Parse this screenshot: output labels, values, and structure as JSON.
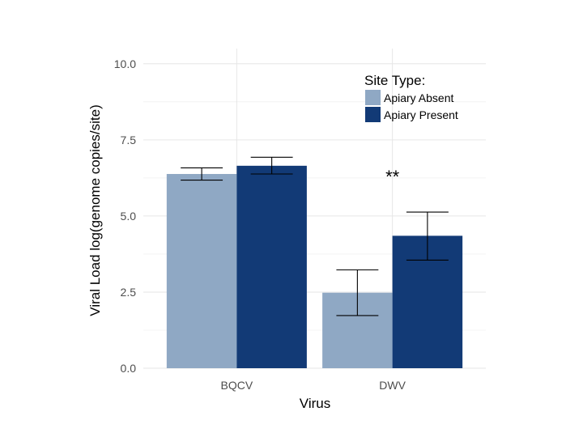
{
  "chart_data": {
    "type": "bar",
    "title": "",
    "xlabel": "Virus",
    "ylabel": "Viral Load log(genome copies/site)",
    "categories": [
      "BQCV",
      "DWV"
    ],
    "ylim": [
      0,
      10.5
    ],
    "yticks": [
      0,
      2.5,
      5,
      7.5,
      10
    ],
    "ytick_labels": [
      "0.0",
      "2.5",
      "5.0",
      "7.5",
      "10.0"
    ],
    "grid": true,
    "legend": {
      "title": "Site Type:",
      "placement": "top-right"
    },
    "series": [
      {
        "name": "Apiary Absent",
        "color": "#8fa8c4",
        "values": [
          6.38,
          2.48
        ],
        "error_low": [
          6.18,
          1.73
        ],
        "error_high": [
          6.58,
          3.23
        ]
      },
      {
        "name": "Apiary Present",
        "color": "#123a76",
        "values": [
          6.65,
          4.35
        ],
        "error_low": [
          6.38,
          3.55
        ],
        "error_high": [
          6.93,
          5.13
        ]
      }
    ],
    "annotations": [
      {
        "text": "**",
        "category": "DWV",
        "y": 6.3
      }
    ]
  }
}
